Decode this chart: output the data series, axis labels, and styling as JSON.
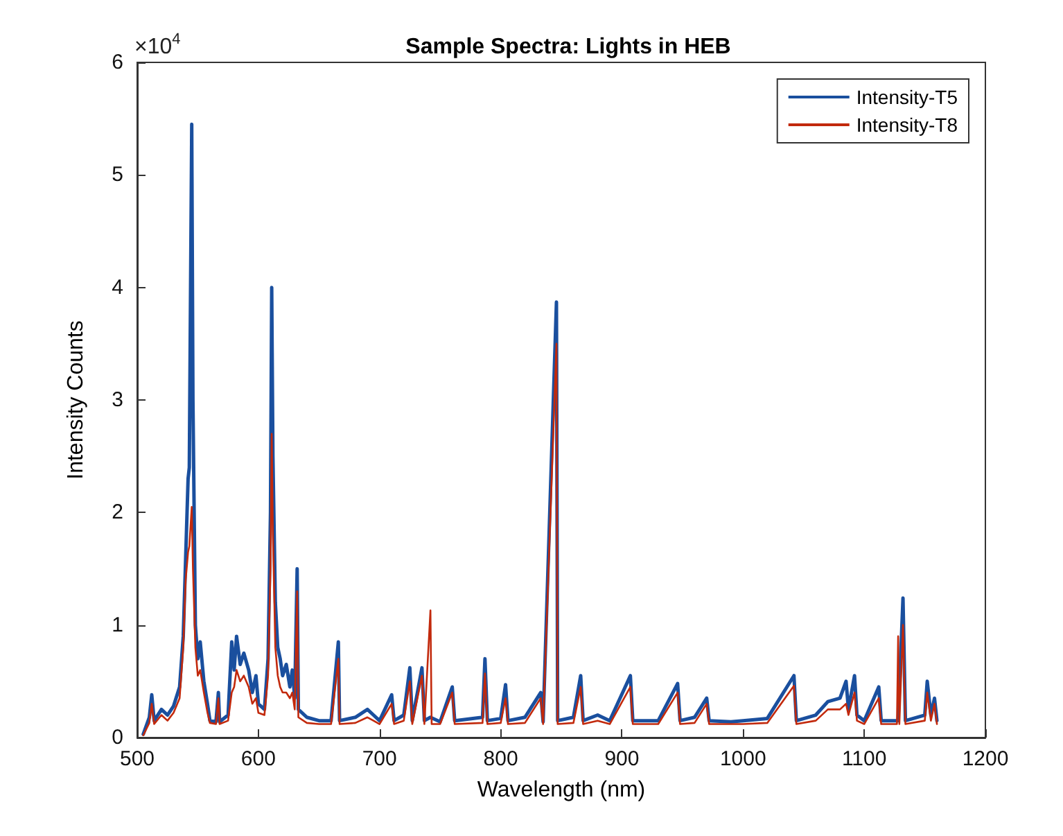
{
  "chart_data": {
    "type": "line",
    "title": "Sample Spectra: Lights in HEB",
    "xlabel": "Wavelength (nm)",
    "ylabel": "Intensity Counts",
    "annotations": [
      "×10$^{4}$"
    ],
    "xlim": [
      500,
      1200
    ],
    "xticks": [
      500,
      600,
      700,
      800,
      900,
      1000,
      1100,
      1200
    ],
    "ylim": [
      0,
      6
    ],
    "yticks": [
      0,
      1,
      2,
      3,
      4,
      5,
      6
    ],
    "grid": false,
    "legend": "top right",
    "marker": "none",
    "line_style": "solid",
    "series": [
      {
        "name": "Intensity-T5",
        "color": "#1a4f9e",
        "x": [
          505,
          510,
          512,
          514,
          520,
          525,
          530,
          535,
          538,
          540,
          542,
          543,
          545,
          546,
          548,
          550,
          552,
          555,
          558,
          560,
          565,
          567,
          568,
          575,
          578,
          580,
          582,
          585,
          588,
          592,
          595,
          598,
          600,
          605,
          608,
          610,
          611,
          612,
          614,
          616,
          618,
          620,
          623,
          626,
          628,
          630,
          632,
          633,
          640,
          650,
          660,
          666,
          667,
          680,
          690,
          695,
          700,
          710,
          712,
          720,
          725,
          727,
          735,
          737,
          742,
          750,
          760,
          762,
          785,
          787,
          789,
          800,
          804,
          806,
          820,
          833,
          835,
          846,
          847,
          860,
          866,
          868,
          880,
          890,
          907,
          909,
          930,
          946,
          948,
          960,
          970,
          972,
          990,
          1000,
          1020,
          1042,
          1044,
          1060,
          1070,
          1080,
          1085,
          1087,
          1092,
          1094,
          1100,
          1112,
          1114,
          1128,
          1132,
          1134,
          1150,
          1152,
          1155,
          1158,
          1160
        ],
        "values": [
          0.03,
          0.18,
          0.38,
          0.15,
          0.25,
          0.2,
          0.28,
          0.45,
          0.9,
          1.6,
          2.3,
          2.4,
          5.45,
          3.0,
          1.0,
          0.7,
          0.85,
          0.5,
          0.3,
          0.15,
          0.14,
          0.4,
          0.14,
          0.2,
          0.85,
          0.6,
          0.9,
          0.65,
          0.75,
          0.6,
          0.4,
          0.55,
          0.3,
          0.25,
          0.7,
          2.0,
          4.0,
          2.5,
          1.2,
          0.8,
          0.7,
          0.55,
          0.65,
          0.45,
          0.6,
          0.35,
          1.5,
          0.25,
          0.18,
          0.15,
          0.15,
          0.85,
          0.15,
          0.18,
          0.25,
          0.2,
          0.15,
          0.38,
          0.15,
          0.2,
          0.62,
          0.15,
          0.62,
          0.15,
          0.18,
          0.14,
          0.45,
          0.15,
          0.18,
          0.7,
          0.15,
          0.17,
          0.47,
          0.15,
          0.18,
          0.4,
          0.14,
          3.87,
          0.15,
          0.18,
          0.55,
          0.15,
          0.2,
          0.15,
          0.55,
          0.15,
          0.15,
          0.48,
          0.15,
          0.18,
          0.35,
          0.15,
          0.14,
          0.15,
          0.17,
          0.55,
          0.15,
          0.2,
          0.32,
          0.35,
          0.5,
          0.25,
          0.55,
          0.2,
          0.15,
          0.45,
          0.15,
          0.15,
          1.24,
          0.15,
          0.2,
          0.5,
          0.2,
          0.35,
          0.15
        ]
      },
      {
        "name": "Intensity-T8",
        "color": "#c2290c",
        "x": [
          505,
          510,
          512,
          514,
          520,
          525,
          530,
          535,
          538,
          540,
          542,
          543,
          545,
          546,
          548,
          550,
          552,
          555,
          558,
          560,
          565,
          567,
          568,
          575,
          578,
          580,
          582,
          585,
          588,
          592,
          595,
          598,
          600,
          605,
          608,
          610,
          611,
          612,
          614,
          616,
          618,
          620,
          623,
          626,
          628,
          630,
          632,
          633,
          640,
          650,
          660,
          666,
          667,
          680,
          690,
          695,
          700,
          710,
          712,
          720,
          725,
          727,
          735,
          737,
          742,
          743,
          750,
          760,
          762,
          785,
          787,
          789,
          800,
          804,
          806,
          820,
          833,
          835,
          846,
          847,
          860,
          866,
          868,
          880,
          890,
          907,
          909,
          930,
          946,
          948,
          960,
          970,
          972,
          990,
          1000,
          1020,
          1042,
          1044,
          1060,
          1070,
          1080,
          1085,
          1087,
          1092,
          1094,
          1100,
          1112,
          1114,
          1127,
          1128,
          1129,
          1132,
          1134,
          1150,
          1152,
          1155,
          1158,
          1160
        ],
        "values": [
          0.02,
          0.13,
          0.3,
          0.12,
          0.2,
          0.15,
          0.22,
          0.35,
          0.8,
          1.4,
          1.65,
          1.7,
          2.05,
          1.5,
          0.8,
          0.55,
          0.6,
          0.4,
          0.22,
          0.13,
          0.12,
          0.35,
          0.12,
          0.15,
          0.4,
          0.45,
          0.6,
          0.5,
          0.55,
          0.45,
          0.3,
          0.35,
          0.22,
          0.2,
          0.55,
          1.5,
          2.7,
          1.8,
          0.8,
          0.55,
          0.45,
          0.4,
          0.4,
          0.35,
          0.4,
          0.25,
          1.3,
          0.18,
          0.13,
          0.12,
          0.12,
          0.7,
          0.12,
          0.13,
          0.18,
          0.15,
          0.12,
          0.3,
          0.12,
          0.15,
          0.5,
          0.12,
          0.55,
          0.12,
          1.13,
          0.12,
          0.12,
          0.4,
          0.12,
          0.13,
          0.57,
          0.12,
          0.13,
          0.35,
          0.12,
          0.13,
          0.35,
          0.12,
          3.5,
          0.12,
          0.13,
          0.45,
          0.12,
          0.15,
          0.12,
          0.45,
          0.12,
          0.12,
          0.4,
          0.12,
          0.13,
          0.3,
          0.12,
          0.12,
          0.12,
          0.13,
          0.46,
          0.12,
          0.15,
          0.25,
          0.25,
          0.3,
          0.2,
          0.4,
          0.15,
          0.12,
          0.35,
          0.12,
          0.12,
          0.9,
          0.12,
          1.0,
          0.12,
          0.15,
          0.4,
          0.15,
          0.3,
          0.12
        ]
      }
    ]
  }
}
